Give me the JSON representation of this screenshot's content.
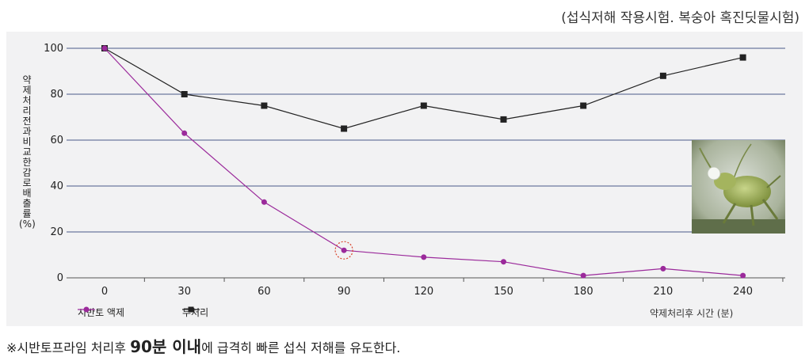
{
  "subtitle": "(섭식저해 작용시험. 복숭아 혹진딧물시험)",
  "footnote": {
    "prefix": "※시반토프라임 처리후 ",
    "emphasis": "90분 이내",
    "suffix": "에 급격히  빠른 섭식 저해를 유도한다."
  },
  "colors": {
    "series_treated": "#9b2a9b",
    "series_control": "#222222",
    "gridline": "#4a5a8a",
    "highlight_circle": "#d9432b",
    "plot_background": "#f2f2f3"
  },
  "chart_data": {
    "type": "line",
    "title": "",
    "xlabel": "약제처리후 시간 (분)",
    "ylabel": "약제 처리전과 비교한 감로배출률 (%)",
    "x": [
      0,
      30,
      60,
      90,
      120,
      150,
      180,
      210,
      240
    ],
    "x_tick_labels": [
      "0",
      "30",
      "60",
      "90",
      "120",
      "150",
      "180",
      "210",
      "240"
    ],
    "y_tick_labels": [
      "100",
      "80",
      "60",
      "40",
      "20",
      "0"
    ],
    "y_ticks": [
      100,
      80,
      60,
      40,
      20,
      0
    ],
    "ylim": [
      0,
      100
    ],
    "grid": "horizontal",
    "legend_position": "bottom-left",
    "series": [
      {
        "name": "시반토 액제",
        "marker": "circle",
        "values": [
          100,
          63,
          33,
          12,
          9,
          7,
          1,
          4,
          1
        ]
      },
      {
        "name": "무처리",
        "marker": "square",
        "values": [
          100,
          80,
          75,
          65,
          75,
          69,
          75,
          88,
          96
        ]
      }
    ],
    "annotations": [
      {
        "type": "circle",
        "series": 0,
        "x": 90
      }
    ]
  }
}
